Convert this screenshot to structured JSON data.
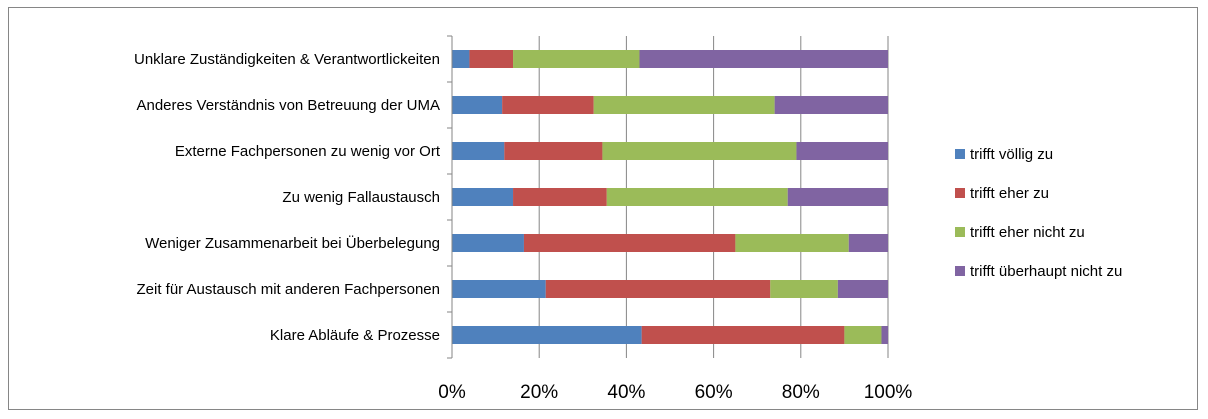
{
  "chart_data": {
    "type": "bar",
    "orientation": "horizontal",
    "stacked": "percent",
    "title": "",
    "xlabel": "",
    "ylabel": "",
    "xlim": [
      0,
      100
    ],
    "x_ticks": [
      "0%",
      "20%",
      "40%",
      "60%",
      "80%",
      "100%"
    ],
    "grid": true,
    "legend_position": "right",
    "categories": [
      "Unklare Zuständigkeiten & Verantwortlickeiten",
      "Anderes Verständnis von Betreuung der UMA",
      "Externe Fachpersonen zu wenig vor Ort",
      "Zu wenig Fallaustausch",
      "Weniger Zusammenarbeit bei Überbelegung",
      "Zeit für Austausch mit anderen Fachpersonen",
      "Klare Abläufe & Prozesse"
    ],
    "series": [
      {
        "name": "trifft völlig zu",
        "color": "#4F81BD",
        "values": [
          4,
          11.5,
          12,
          14,
          16.5,
          21.5,
          43.5
        ]
      },
      {
        "name": "trifft eher zu",
        "color": "#C0504D",
        "values": [
          10,
          21,
          22.5,
          21.5,
          48.5,
          51.5,
          46.5
        ]
      },
      {
        "name": "trifft eher nicht zu",
        "color": "#9BBB59",
        "values": [
          29,
          41.5,
          44.5,
          41.5,
          26,
          15.5,
          8.5
        ]
      },
      {
        "name": "trifft überhaupt nicht zu",
        "color": "#8064A2",
        "values": [
          57,
          26,
          21,
          23,
          9,
          11.5,
          1.5
        ]
      }
    ]
  }
}
